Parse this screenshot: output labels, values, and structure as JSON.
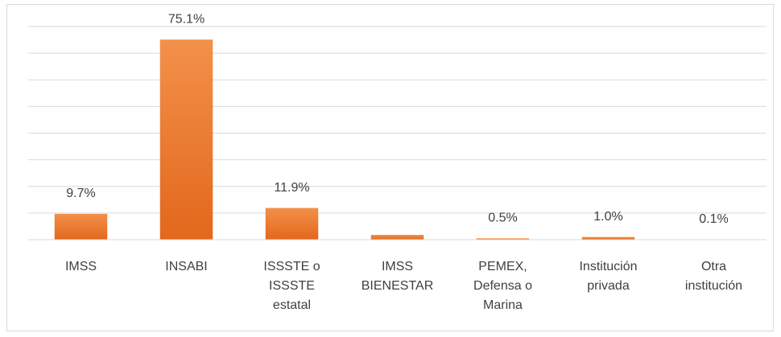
{
  "chart_data": {
    "type": "bar",
    "categories": [
      "IMSS",
      "INSABI",
      "ISSSTE o ISSSTE estatal",
      "IMSS BIENESTAR",
      "PEMEX, Defensa o Marina",
      "Institución privada",
      "Otra institución"
    ],
    "values": [
      9.7,
      75.1,
      11.9,
      1.8,
      0.5,
      1.0,
      0.1
    ],
    "value_labels": [
      "9.7%",
      "75.1%",
      "11.9%",
      null,
      "0.5%",
      "1.0%",
      "0.1%"
    ],
    "color": "#ed7d31",
    "ylim": [
      0,
      80
    ],
    "yticks": [
      0,
      10,
      20,
      30,
      40,
      50,
      60,
      70,
      80
    ],
    "grid": true
  }
}
